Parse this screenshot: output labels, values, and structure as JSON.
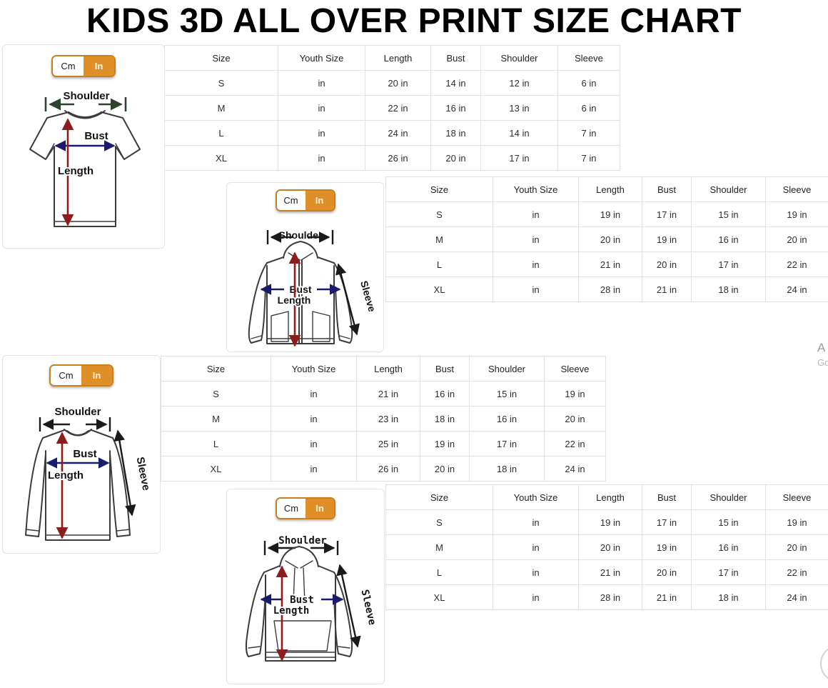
{
  "title": "KIDS 3D ALL OVER PRINT SIZE CHART",
  "unit_toggle": {
    "cm": "Cm",
    "in": "In"
  },
  "table_columns": [
    "Size",
    "Youth Size",
    "Length",
    "Bust",
    "Shoulder",
    "Sleeve"
  ],
  "sections": {
    "tshirt": {
      "labels": {
        "shoulder": "Shoulder",
        "bust": "Bust",
        "length": "Length"
      },
      "rows": [
        {
          "size": "S",
          "youth": "in",
          "length": "20 in",
          "bust": "14 in",
          "shoulder": "12 in",
          "sleeve": "6 in"
        },
        {
          "size": "M",
          "youth": "in",
          "length": "22 in",
          "bust": "16 in",
          "shoulder": "13 in",
          "sleeve": "6 in"
        },
        {
          "size": "L",
          "youth": "in",
          "length": "24 in",
          "bust": "18 in",
          "shoulder": "14 in",
          "sleeve": "7 in"
        },
        {
          "size": "XL",
          "youth": "in",
          "length": "26 in",
          "bust": "20 in",
          "shoulder": "17 in",
          "sleeve": "7 in"
        }
      ]
    },
    "zip_hoodie": {
      "labels": {
        "shoulder": "Shoulder",
        "bust": "Bust",
        "length": "Length",
        "sleeve": "Sleeve"
      },
      "rows": [
        {
          "size": "S",
          "youth": "in",
          "length": "19 in",
          "bust": "17 in",
          "shoulder": "15 in",
          "sleeve": "19 in"
        },
        {
          "size": "M",
          "youth": "in",
          "length": "20 in",
          "bust": "19 in",
          "shoulder": "16 in",
          "sleeve": "20 in"
        },
        {
          "size": "L",
          "youth": "in",
          "length": "21 in",
          "bust": "20 in",
          "shoulder": "17 in",
          "sleeve": "22 in"
        },
        {
          "size": "XL",
          "youth": "in",
          "length": "28 in",
          "bust": "21 in",
          "shoulder": "18 in",
          "sleeve": "24 in"
        }
      ]
    },
    "long_sleeve": {
      "labels": {
        "shoulder": "Shoulder",
        "bust": "Bust",
        "length": "Length",
        "sleeve": "Sleeve"
      },
      "rows": [
        {
          "size": "S",
          "youth": "in",
          "length": "21 in",
          "bust": "16 in",
          "shoulder": "15 in",
          "sleeve": "19 in"
        },
        {
          "size": "M",
          "youth": "in",
          "length": "23 in",
          "bust": "18 in",
          "shoulder": "16 in",
          "sleeve": "20 in"
        },
        {
          "size": "L",
          "youth": "in",
          "length": "25 in",
          "bust": "19 in",
          "shoulder": "17 in",
          "sleeve": "22 in"
        },
        {
          "size": "XL",
          "youth": "in",
          "length": "26 in",
          "bust": "20 in",
          "shoulder": "18 in",
          "sleeve": "24 in"
        }
      ]
    },
    "hoodie": {
      "labels": {
        "shoulder": "Shoulder",
        "bust": "Bust",
        "length": "Length",
        "sleeve": "Sleeve"
      },
      "rows": [
        {
          "size": "S",
          "youth": "in",
          "length": "19 in",
          "bust": "17 in",
          "shoulder": "15 in",
          "sleeve": "19 in"
        },
        {
          "size": "M",
          "youth": "in",
          "length": "20 in",
          "bust": "19 in",
          "shoulder": "16 in",
          "sleeve": "20 in"
        },
        {
          "size": "L",
          "youth": "in",
          "length": "21 in",
          "bust": "20 in",
          "shoulder": "17 in",
          "sleeve": "22 in"
        },
        {
          "size": "XL",
          "youth": "in",
          "length": "28 in",
          "bust": "21 in",
          "shoulder": "18 in",
          "sleeve": "24 in"
        }
      ]
    }
  },
  "page_edge": {
    "partial_text_top": "A",
    "partial_text_bottom": "Go"
  },
  "colors": {
    "accent_orange": "#DE8F28",
    "toggle_border": "#C8801F",
    "length_arrow": "#8E1C1C",
    "bust_arrow": "#1B1B6E",
    "tee_shoulder_arrow": "#2C442C",
    "arrow_black": "#1A1A1A",
    "table_grid": "#E1E1E1"
  }
}
